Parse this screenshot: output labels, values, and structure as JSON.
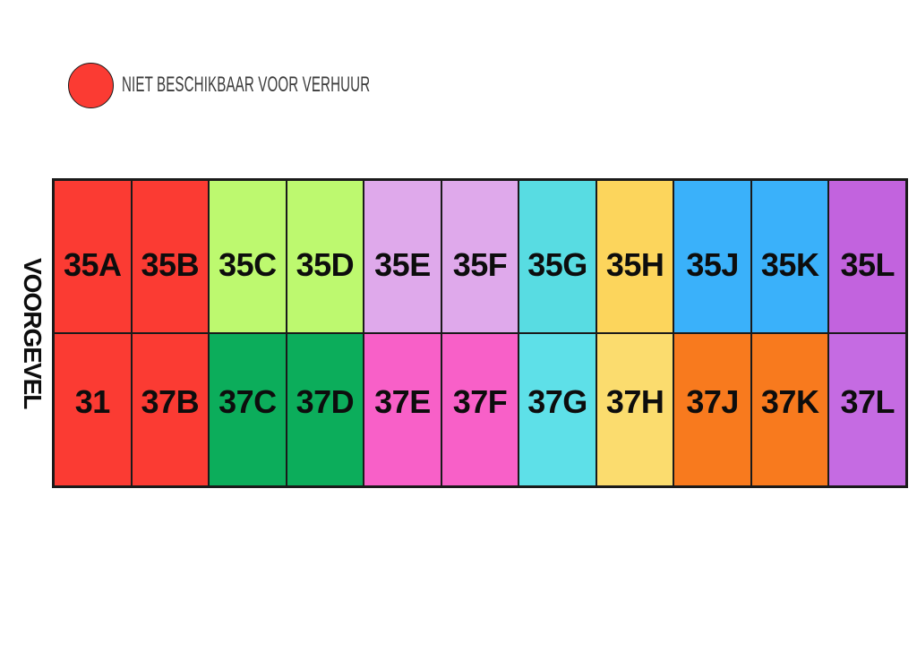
{
  "legend": {
    "marker": "red-circle",
    "marker_color": "#fb3b33",
    "label": "NIET BESCHIKBAAR VOOR VERHUUR"
  },
  "side_label": "VOORGEVEL",
  "units": {
    "row_35": [
      {
        "label": "35A",
        "color": "#fb3b33"
      },
      {
        "label": "35B",
        "color": "#fb3b33"
      },
      {
        "label": "35C",
        "color": "#bdf96f"
      },
      {
        "label": "35D",
        "color": "#bdf96f"
      },
      {
        "label": "35E",
        "color": "#dfa9eb"
      },
      {
        "label": "35F",
        "color": "#dfa9eb"
      },
      {
        "label": "35G",
        "color": "#58dce2"
      },
      {
        "label": "35H",
        "color": "#fcd55c"
      },
      {
        "label": "35J",
        "color": "#3ab1fa"
      },
      {
        "label": "35K",
        "color": "#3ab1fa"
      },
      {
        "label": "35L",
        "color": "#c263de"
      }
    ],
    "row_37": [
      {
        "label": "31",
        "color": "#fb3b33"
      },
      {
        "label": "37B",
        "color": "#fb3b33"
      },
      {
        "label": "37C",
        "color": "#0cad5b"
      },
      {
        "label": "37D",
        "color": "#0cad5b"
      },
      {
        "label": "37E",
        "color": "#f860c8"
      },
      {
        "label": "37F",
        "color": "#f860c8"
      },
      {
        "label": "37G",
        "color": "#5ee0e8"
      },
      {
        "label": "37H",
        "color": "#fbdc6e"
      },
      {
        "label": "37J",
        "color": "#f87a1e"
      },
      {
        "label": "37K",
        "color": "#f87a1e"
      },
      {
        "label": "37L",
        "color": "#c56be2"
      }
    ]
  }
}
